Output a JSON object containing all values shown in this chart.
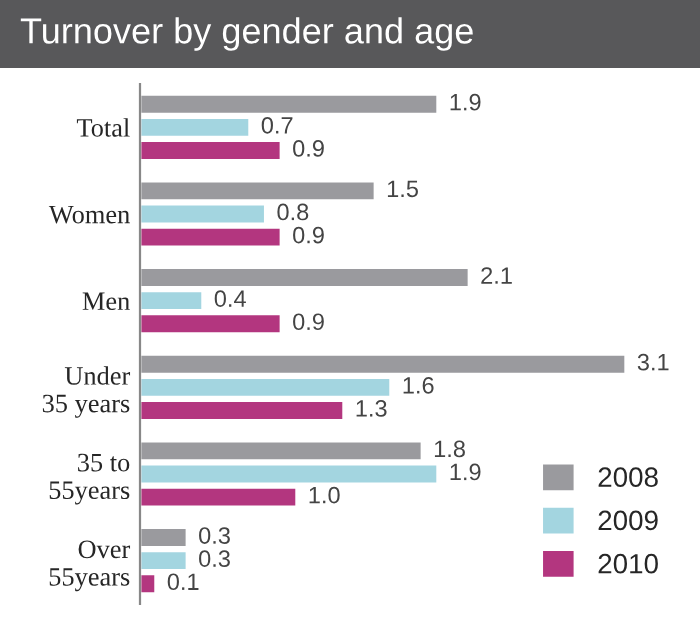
{
  "chart_data": {
    "type": "bar",
    "orientation": "horizontal",
    "title": "Turnover by gender and age",
    "categories": [
      "Total",
      "Women",
      "Men",
      "Under\n35 years",
      "35 to\n55years",
      "Over\n55years"
    ],
    "series": [
      {
        "name": "2008",
        "color": "#9a9a9e",
        "values": [
          1.9,
          1.5,
          2.1,
          3.1,
          1.8,
          0.3
        ],
        "value_labels": [
          "1.9",
          "1.5",
          "2.1",
          "3.1",
          "1.8",
          "0.3"
        ]
      },
      {
        "name": "2009",
        "color": "#a3d5e0",
        "values": [
          0.7,
          0.8,
          0.4,
          1.6,
          1.9,
          0.3
        ],
        "value_labels": [
          "0.7",
          "0.8",
          "0.4",
          "1.6",
          "1.9",
          "0.3"
        ]
      },
      {
        "name": "2010",
        "color": "#b3367f",
        "values": [
          0.9,
          0.9,
          0.9,
          1.3,
          1.0,
          0.1
        ],
        "value_labels": [
          "0.9",
          "0.9",
          "0.9",
          "1.3",
          "1.0",
          "0.1"
        ]
      }
    ],
    "legend": "bottom right",
    "grid": false
  }
}
